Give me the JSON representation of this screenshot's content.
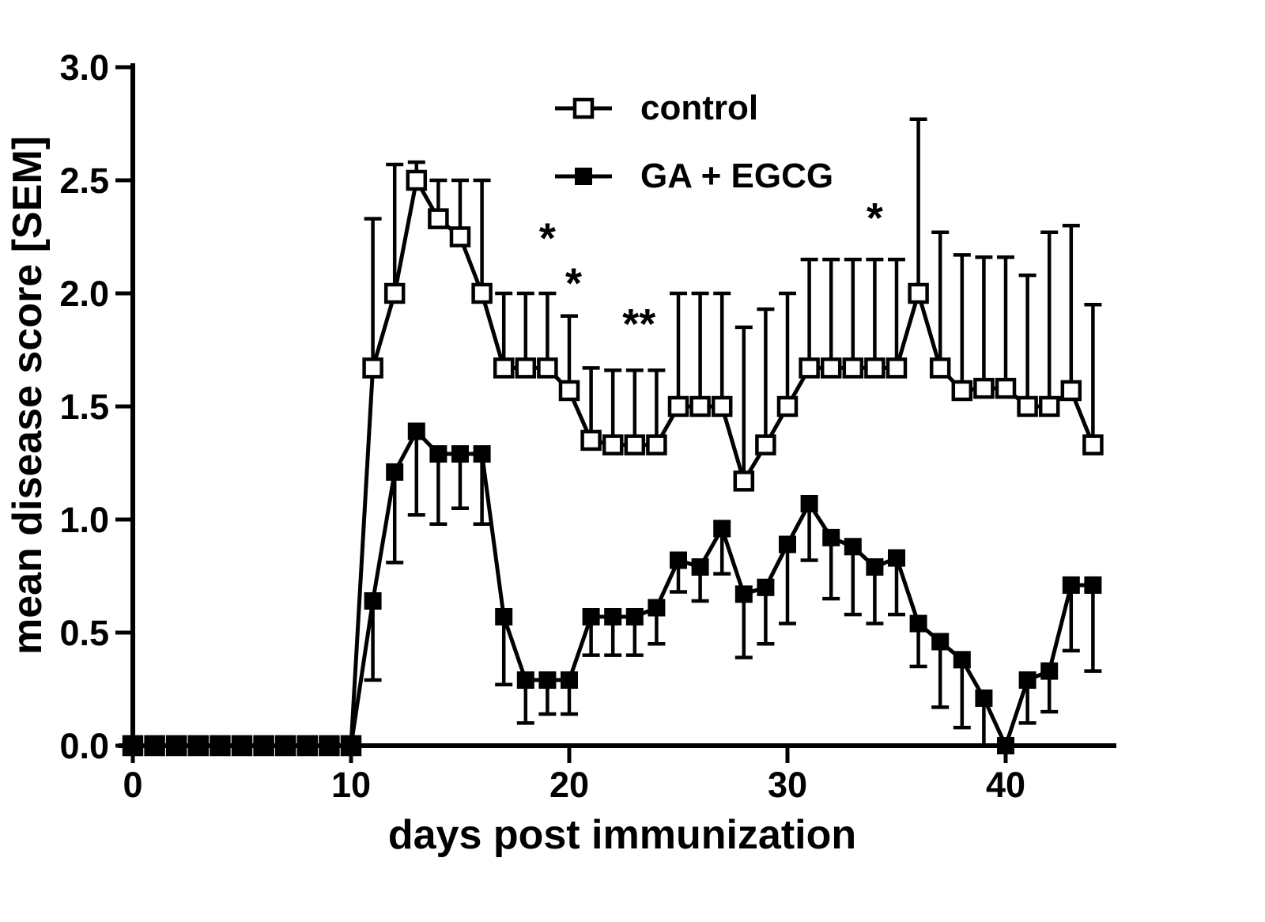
{
  "chart_data": {
    "type": "line",
    "title": "",
    "xlabel": "days post immunization",
    "ylabel": "mean disease score [SEM]",
    "xlim": [
      0,
      45
    ],
    "ylim": [
      0.0,
      3.0
    ],
    "x_ticks": [
      0,
      10,
      20,
      30,
      40
    ],
    "y_ticks": [
      0.0,
      0.5,
      1.0,
      1.5,
      2.0,
      2.5,
      3.0
    ],
    "grid": false,
    "legend_position": "top-center-inside",
    "colors": {
      "line": "#000000",
      "background": "#ffffff"
    },
    "x": [
      0,
      1,
      2,
      3,
      4,
      5,
      6,
      7,
      8,
      9,
      10,
      11,
      12,
      13,
      14,
      15,
      16,
      17,
      18,
      19,
      20,
      21,
      22,
      23,
      24,
      25,
      26,
      27,
      28,
      29,
      30,
      31,
      32,
      33,
      34,
      35,
      36,
      37,
      38,
      39,
      40,
      41,
      42,
      43,
      44
    ],
    "series": [
      {
        "name": "control",
        "marker": "open-square",
        "error_direction": "up",
        "values": [
          0,
          0,
          0,
          0,
          0,
          0,
          0,
          0,
          0,
          0,
          0,
          1.67,
          2.0,
          2.5,
          2.33,
          2.25,
          2.0,
          1.67,
          1.67,
          1.67,
          1.57,
          1.35,
          1.33,
          1.33,
          1.33,
          1.5,
          1.5,
          1.5,
          1.17,
          1.33,
          1.5,
          1.67,
          1.67,
          1.67,
          1.67,
          1.67,
          2.0,
          1.67,
          1.57,
          1.58,
          1.58,
          1.5,
          1.5,
          1.57,
          1.33
        ],
        "errors": [
          0,
          0,
          0,
          0,
          0,
          0,
          0,
          0,
          0,
          0,
          0,
          0.66,
          0.57,
          0.08,
          0.17,
          0.25,
          0.5,
          0.33,
          0.33,
          0.33,
          0.33,
          0.32,
          0.33,
          0.33,
          0.33,
          0.5,
          0.5,
          0.5,
          0.68,
          0.6,
          0.5,
          0.48,
          0.48,
          0.48,
          0.48,
          0.48,
          0.77,
          0.6,
          0.6,
          0.58,
          0.58,
          0.58,
          0.77,
          0.73,
          0.62
        ]
      },
      {
        "name": "GA + EGCG",
        "marker": "filled-square",
        "error_direction": "down",
        "values": [
          0,
          0,
          0,
          0,
          0,
          0,
          0,
          0,
          0,
          0,
          0,
          0.64,
          1.21,
          1.39,
          1.29,
          1.29,
          1.29,
          0.57,
          0.29,
          0.29,
          0.29,
          0.57,
          0.57,
          0.57,
          0.61,
          0.82,
          0.79,
          0.96,
          0.67,
          0.7,
          0.89,
          1.07,
          0.92,
          0.88,
          0.79,
          0.83,
          0.54,
          0.46,
          0.38,
          0.21,
          0.0,
          0.29,
          0.33,
          0.71,
          0.71
        ],
        "errors": [
          0,
          0,
          0,
          0,
          0,
          0,
          0,
          0,
          0,
          0,
          0,
          0.35,
          0.4,
          0.37,
          0.31,
          0.24,
          0.31,
          0.3,
          0.19,
          0.15,
          0.15,
          0.17,
          0.17,
          0.17,
          0.16,
          0.14,
          0.15,
          0.2,
          0.28,
          0.25,
          0.35,
          0.25,
          0.27,
          0.3,
          0.25,
          0.25,
          0.19,
          0.29,
          0.3,
          0.21,
          0.0,
          0.19,
          0.18,
          0.29,
          0.38
        ]
      }
    ],
    "annotations": [
      {
        "text": "*",
        "x": 19,
        "y": 2.18
      },
      {
        "text": "*",
        "x": 20.2,
        "y": 1.98
      },
      {
        "text": "**",
        "x": 23.2,
        "y": 1.8
      },
      {
        "text": "*",
        "x": 34,
        "y": 2.27
      }
    ]
  }
}
